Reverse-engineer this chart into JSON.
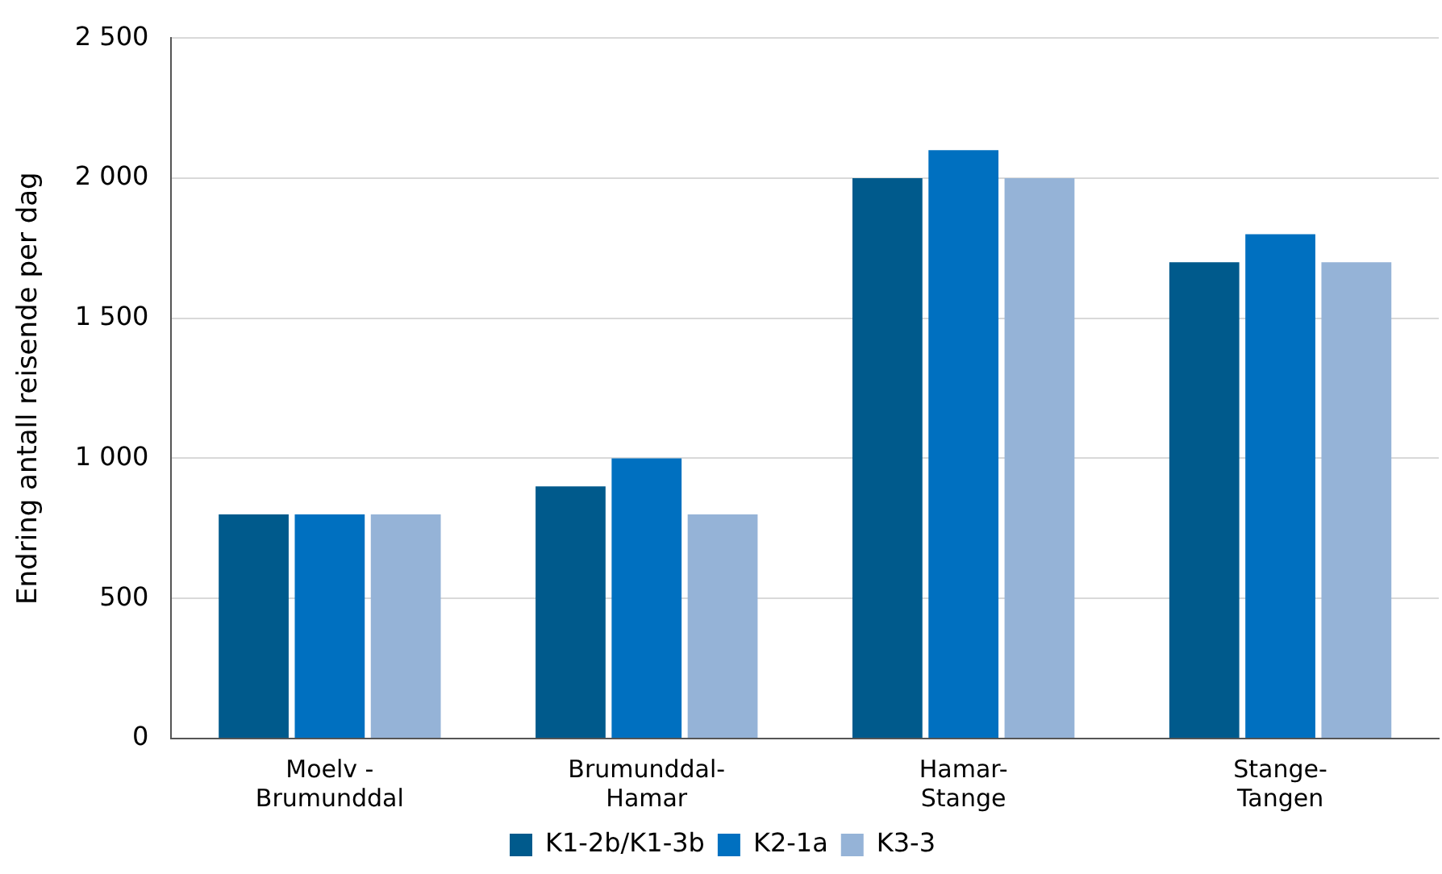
{
  "chart_data": {
    "type": "bar",
    "ylabel": "Endring antall reisende per dag",
    "categories": [
      "Moelv -\nBrumunddal",
      "Brumunddal-\nHamar",
      "Hamar-\nStange",
      "Stange-\nTangen"
    ],
    "series": [
      {
        "name": "K1-2b/K1-3b",
        "color": "#005a8c",
        "values": [
          800,
          900,
          2000,
          1700
        ]
      },
      {
        "name": "K2-1a",
        "color": "#0070c0",
        "values": [
          800,
          1000,
          2100,
          1800
        ]
      },
      {
        "name": "K3-3",
        "color": "#95b3d7",
        "values": [
          800,
          800,
          2000,
          1700
        ]
      }
    ],
    "ylim": [
      0,
      2500
    ],
    "yticks": [
      0,
      {
        "value": 500,
        "label": "500"
      },
      {
        "value": 1000,
        "label": "1 000"
      },
      {
        "value": 1500,
        "label": "1 500"
      },
      {
        "value": 2000,
        "label": "2 000"
      },
      {
        "value": 2500,
        "label": "2 500"
      }
    ],
    "grid": "y",
    "legend": "bottom"
  }
}
